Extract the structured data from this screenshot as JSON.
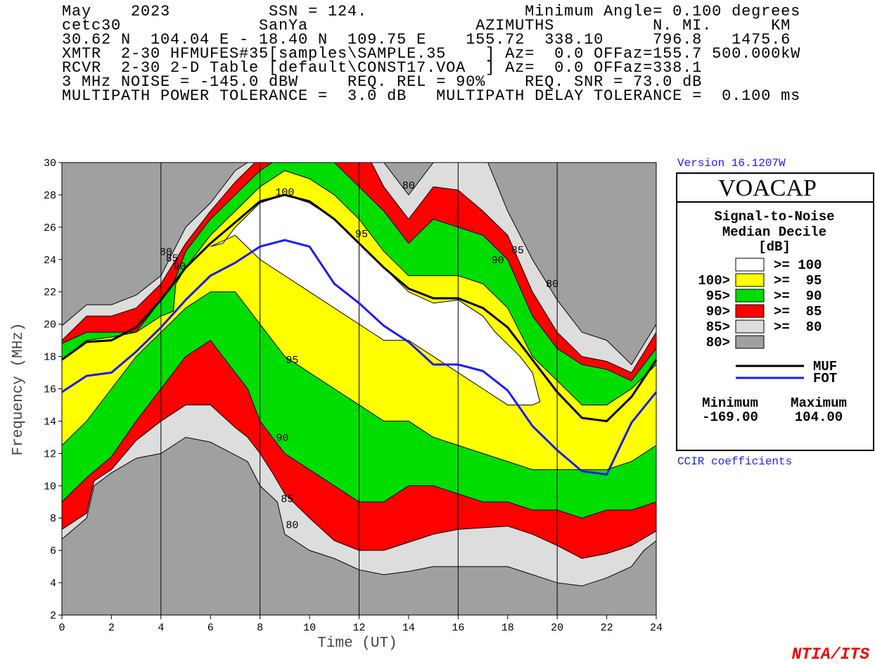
{
  "chart_data": {
    "type": "contour",
    "header": [
      "May    2023          SSN = 124.                Minimum Angle= 0.100 degrees",
      "cetc30              SanYa                 AZIMUTHS          N. MI.      KM",
      "30.62 N  104.04 E - 18.40 N  109.75 E    155.72  338.10     796.8   1475.6",
      "XMTR  2-30 HFMUFES#35[samples\\SAMPLE.35    ] Az=  0.0 OFFaz=155.7 500.000kW",
      "RCVR  2-30 2-D Table [default\\CONST17.VOA  ] Az=  0.0 OFFaz=338.1",
      "3 MHz NOISE = -145.0 dBW     REQ. REL = 90%    REQ. SNR = 73.0 dB",
      "MULTIPATH POWER TOLERANCE =  3.0 dB   MULTIPATH DELAY TOLERANCE =  0.100 ms"
    ],
    "version": "Version 16.1207W",
    "footnote": "CCIR coefficients",
    "credit": "NTIA/ITS",
    "xlabel": "Time (UT)",
    "ylabel": "Frequency (MHz)",
    "xlim": [
      0,
      24
    ],
    "ylim": [
      2,
      30
    ],
    "xticks": [
      0,
      2,
      4,
      6,
      8,
      10,
      12,
      14,
      16,
      18,
      20,
      22,
      24
    ],
    "yticks": [
      2,
      4,
      6,
      8,
      10,
      12,
      14,
      16,
      18,
      20,
      22,
      24,
      26,
      28,
      30
    ],
    "xgrid": [
      4,
      8,
      12,
      16,
      20
    ],
    "legend": {
      "title": "VOACAP",
      "subtitle": [
        "Signal-to-Noise",
        "Median Decile",
        "[dB]"
      ],
      "min_label": "Minimum",
      "max_label": "Maximum",
      "min_value": {
        "value": -169,
        "label": "-169.00"
      },
      "max_value": {
        "value": 104,
        "label": "104.00"
      }
    },
    "bands": [
      {
        "range": ">= 100",
        "color": "#ffffff",
        "outline": {
          "x": [
            6,
            7,
            8,
            9,
            10,
            12,
            13,
            14,
            15,
            16,
            17,
            18,
            19,
            19.3,
            19,
            18.5,
            17.5,
            17,
            16,
            15,
            14,
            13,
            12,
            11,
            10,
            9,
            8,
            7,
            6.5
          ],
          "y": [
            24.8,
            25.5,
            24,
            23,
            22,
            20,
            19,
            19,
            18,
            17,
            16,
            15,
            15,
            15.2,
            17,
            18,
            19.5,
            20.5,
            21.5,
            21.3,
            22,
            23.5,
            25,
            26.5,
            27.5,
            28,
            27.5,
            26,
            25
          ]
        }
      },
      {
        "label": "100>",
        "range": ">=  95",
        "color": "#ffff00",
        "outline": {
          "x": [
            0,
            1,
            2,
            3,
            4,
            4.5,
            4.6,
            5,
            6,
            7,
            8,
            9,
            10,
            11,
            12,
            13,
            14,
            15,
            16,
            17,
            18,
            19,
            20,
            21,
            22,
            23,
            24,
            24,
            23,
            22,
            21,
            20,
            19,
            18,
            17,
            16,
            15,
            14,
            13,
            12,
            11,
            10,
            9,
            8,
            7,
            6,
            5,
            4,
            3,
            2,
            1,
            0
          ],
          "y": [
            17.8,
            19,
            19.2,
            19.5,
            20.5,
            20.8,
            22.5,
            23.5,
            25.5,
            27,
            28.5,
            29.5,
            29,
            28,
            26.5,
            24.5,
            23,
            23,
            23,
            22.5,
            21,
            18,
            16.5,
            15,
            15,
            16,
            17.5,
            12.5,
            11.5,
            11,
            11,
            11,
            11,
            11.5,
            12,
            12.5,
            13,
            14,
            14,
            15,
            16,
            17,
            18,
            20,
            22,
            22,
            21,
            19.5,
            18,
            16,
            14,
            12.5
          ]
        }
      },
      {
        "label": "95>",
        "range": ">=  90",
        "color": "#00dd00",
        "outline": {
          "x": [
            0,
            1,
            2,
            3,
            4,
            4.5,
            5,
            6,
            7,
            8,
            8.5,
            11,
            12,
            13,
            14,
            15,
            16,
            17,
            18,
            19,
            20,
            21,
            22,
            23,
            24,
            24,
            23,
            22,
            21,
            20,
            19,
            18,
            17,
            16,
            15,
            14,
            13,
            12,
            11,
            10,
            9,
            8,
            7.5,
            7,
            6,
            5,
            4.5,
            4,
            3,
            2,
            1,
            0
          ],
          "y": [
            18.8,
            19.5,
            19.5,
            19.5,
            21.5,
            22.5,
            24.5,
            26.5,
            28,
            29.5,
            30,
            30,
            28.5,
            27,
            25,
            26.5,
            26,
            25.5,
            24,
            20.5,
            18.5,
            17.5,
            17.2,
            16.5,
            18.5,
            9,
            8.5,
            8.5,
            8,
            8.5,
            8.5,
            9,
            9,
            9.5,
            10,
            10,
            9,
            9,
            10,
            11,
            12,
            14,
            16,
            17,
            19,
            18,
            17,
            16,
            14,
            11.8,
            10.5,
            9
          ]
        }
      },
      {
        "label": "90>",
        "range": ">=  85",
        "color": "#ff0000",
        "outline": {
          "x": [
            0,
            1,
            2,
            3,
            4,
            5,
            6,
            7,
            7.8,
            12.5,
            13,
            14,
            15,
            16,
            17,
            18,
            19,
            20,
            21,
            22,
            23,
            24,
            24,
            23,
            22,
            21,
            20,
            19,
            18,
            16,
            15,
            14,
            13,
            12,
            11,
            10,
            9,
            8.5,
            8,
            7.5,
            7,
            6,
            5,
            4,
            3,
            2,
            1.3,
            1,
            0
          ],
          "y": [
            19,
            20.5,
            20.5,
            21,
            22.5,
            25,
            27,
            28.8,
            30,
            30,
            28.5,
            26.5,
            28.5,
            28.3,
            27,
            25.5,
            22,
            19.5,
            18,
            17.7,
            17,
            19.5,
            7.2,
            6.3,
            5.8,
            5.5,
            6.3,
            7,
            7.5,
            7.3,
            7,
            6.5,
            6,
            6,
            6.6,
            8,
            9.5,
            10.8,
            12,
            13,
            13.6,
            15,
            15,
            14,
            12.8,
            11,
            10.3,
            8.3,
            7.3
          ]
        }
      },
      {
        "label": "85>",
        "range": ">=  80",
        "color": "#dddddd",
        "outline": {
          "x": [
            0,
            1,
            2,
            3,
            4,
            5,
            6,
            7,
            7.5,
            13,
            14,
            15,
            17.2,
            18,
            19,
            20,
            21,
            22,
            23,
            24,
            24,
            23.5,
            23,
            22,
            21,
            20,
            19,
            18,
            15,
            14,
            13,
            12,
            11,
            10,
            9,
            8.7,
            8,
            7.5,
            7,
            6,
            5,
            4,
            3,
            2,
            1.3,
            1,
            0
          ],
          "y": [
            19.9,
            21.2,
            21.2,
            21.8,
            23,
            26,
            27.5,
            29.5,
            30,
            30,
            28,
            30,
            30,
            27,
            24,
            21.5,
            19.5,
            19,
            17.5,
            20,
            6.6,
            6,
            5,
            4.3,
            3.8,
            4,
            4.5,
            5,
            5,
            4.7,
            4.5,
            4.8,
            5.5,
            6,
            7,
            9,
            10,
            11.5,
            11.9,
            12.7,
            13,
            12,
            11.7,
            10.8,
            10,
            8,
            6.7
          ]
        }
      },
      {
        "label": "80>",
        "color": "#a0a0a0"
      }
    ],
    "contour_labels": [
      {
        "text": "80",
        "x": 4.2,
        "y": 24.5
      },
      {
        "text": "85",
        "x": 4.45,
        "y": 24.1
      },
      {
        "text": "90",
        "x": 4.75,
        "y": 23.6
      },
      {
        "text": "100",
        "x": 9,
        "y": 28.2
      },
      {
        "text": "95",
        "x": 12.1,
        "y": 25.6
      },
      {
        "text": "80",
        "x": 14,
        "y": 28.6
      },
      {
        "text": "90",
        "x": 17.6,
        "y": 24
      },
      {
        "text": "85",
        "x": 18.4,
        "y": 24.6
      },
      {
        "text": "80",
        "x": 19.8,
        "y": 22.5
      },
      {
        "text": "95",
        "x": 9.3,
        "y": 17.8
      },
      {
        "text": "90",
        "x": 8.9,
        "y": 13
      },
      {
        "text": "85",
        "x": 9.1,
        "y": 9.2
      },
      {
        "text": "80",
        "x": 9.3,
        "y": 7.6
      }
    ],
    "x": [
      0,
      1,
      2,
      3,
      4,
      5,
      6,
      7,
      8,
      9,
      10,
      11,
      12,
      13,
      14,
      15,
      16,
      17,
      18,
      19,
      20,
      21,
      22,
      23,
      24
    ],
    "series": [
      {
        "name": "MUF",
        "color": "#000000",
        "values": [
          17.8,
          18.9,
          19,
          19.8,
          21.5,
          23.5,
          25,
          26.3,
          27.6,
          28,
          27.6,
          26.5,
          25,
          23.5,
          22.2,
          21.6,
          21.6,
          21,
          19.8,
          17.8,
          15.8,
          14.2,
          14,
          15.5,
          17.8
        ]
      },
      {
        "name": "FOT",
        "color": "#1a1aff",
        "values": [
          15.8,
          16.8,
          17,
          18.3,
          19.8,
          21.5,
          23,
          23.8,
          24.8,
          25.2,
          24.8,
          22.5,
          21.3,
          19.9,
          18.9,
          17.5,
          17.5,
          17.1,
          15.9,
          13.7,
          12.2,
          10.9,
          10.7,
          13.9,
          15.8
        ]
      }
    ]
  }
}
